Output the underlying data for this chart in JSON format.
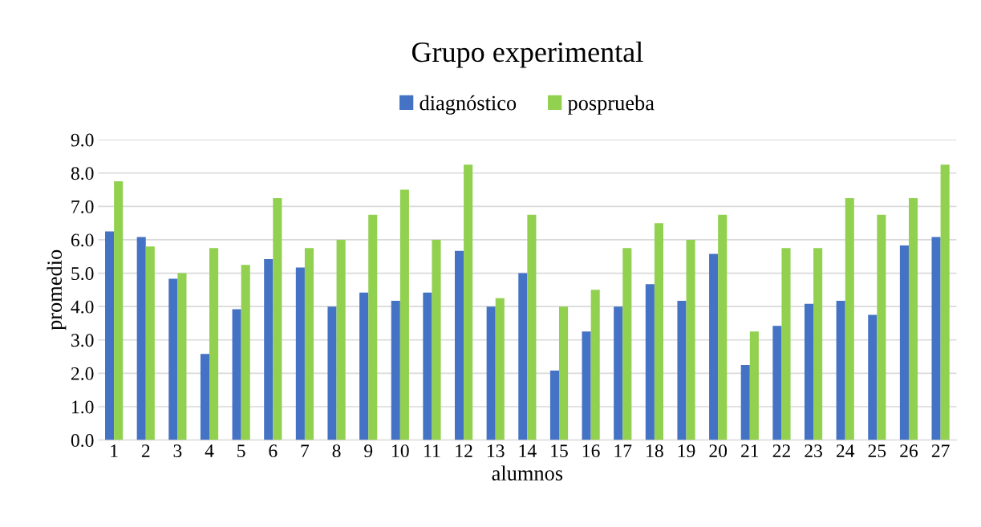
{
  "chart_data": {
    "type": "bar",
    "title": "Grupo experimental",
    "xlabel": "alumnos",
    "ylabel": "promedio",
    "categories": [
      "1",
      "2",
      "3",
      "4",
      "5",
      "6",
      "7",
      "8",
      "9",
      "10",
      "11",
      "12",
      "13",
      "14",
      "15",
      "16",
      "17",
      "18",
      "19",
      "20",
      "21",
      "22",
      "23",
      "24",
      "25",
      "26",
      "27"
    ],
    "series": [
      {
        "name": "diagnóstico",
        "color": "#4472c4",
        "values": [
          6.25,
          6.08,
          4.83,
          2.58,
          3.92,
          5.42,
          5.17,
          4.0,
          4.42,
          4.17,
          4.42,
          5.67,
          4.0,
          5.0,
          2.08,
          3.25,
          4.0,
          4.67,
          4.17,
          5.58,
          2.25,
          3.42,
          4.08,
          4.17,
          3.75,
          5.83,
          6.08
        ]
      },
      {
        "name": "posprueba",
        "color": "#92d050",
        "values": [
          7.75,
          5.8,
          5.0,
          5.75,
          5.25,
          7.25,
          5.75,
          6.0,
          6.75,
          7.5,
          6.0,
          8.25,
          4.25,
          6.75,
          4.0,
          4.5,
          5.75,
          6.5,
          6.0,
          6.75,
          3.25,
          5.75,
          5.75,
          7.25,
          6.75,
          7.25,
          8.25
        ]
      }
    ],
    "ylim": [
      0,
      9
    ],
    "yticks": [
      {
        "value": 0,
        "label": "0.0"
      },
      {
        "value": 1,
        "label": "1.0"
      },
      {
        "value": 2,
        "label": "2.0"
      },
      {
        "value": 3,
        "label": "3.0"
      },
      {
        "value": 4,
        "label": "4.0"
      },
      {
        "value": 5,
        "label": "5.0"
      },
      {
        "value": 6,
        "label": "6.0"
      },
      {
        "value": 7,
        "label": "7.0"
      },
      {
        "value": 8,
        "label": "8.0"
      },
      {
        "value": 9,
        "label": "9.0"
      }
    ],
    "grid": "y",
    "legend": "top"
  }
}
